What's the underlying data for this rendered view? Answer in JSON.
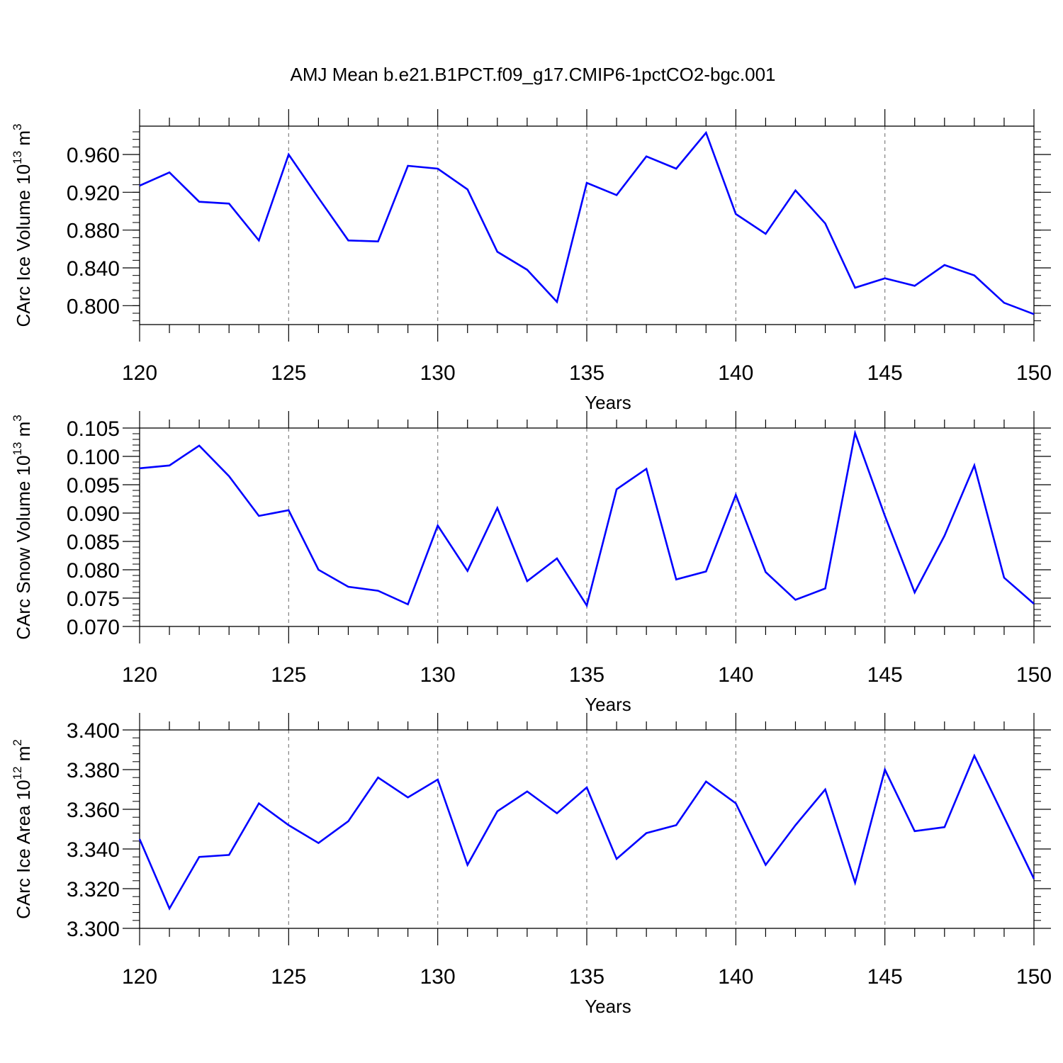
{
  "title": "AMJ Mean b.e21.B1PCT.f09_g17.CMIP6-1pctCO2-bgc.001",
  "line_color": "#0000ff",
  "grid_color": "#808080",
  "chart_data": [
    {
      "type": "line",
      "xlabel": "Years",
      "ylabel_main": "CArc Ice Volume 10",
      "ylabel_exp": "13",
      "ylabel_unit": " m",
      "ylabel_unit_exp": "3",
      "xlim": [
        120,
        150
      ],
      "ylim": [
        0.78,
        0.99
      ],
      "xticks": [
        120,
        125,
        130,
        135,
        140,
        145,
        150
      ],
      "xtick_labels": [
        "120",
        "125",
        "130",
        "135",
        "140",
        "145",
        "150"
      ],
      "yticks": [
        0.8,
        0.84,
        0.88,
        0.92,
        0.96
      ],
      "ytick_labels": [
        "0.800",
        "0.840",
        "0.880",
        "0.920",
        "0.960"
      ],
      "y_minor_step": 0.008,
      "grid": "x-dashed",
      "x": [
        120,
        121,
        122,
        123,
        124,
        125,
        126,
        127,
        128,
        129,
        130,
        131,
        132,
        133,
        134,
        135,
        136,
        137,
        138,
        139,
        140,
        141,
        142,
        143,
        144,
        145,
        146,
        147,
        148,
        149,
        150
      ],
      "values": [
        0.927,
        0.941,
        0.91,
        0.908,
        0.869,
        0.96,
        0.914,
        0.869,
        0.868,
        0.948,
        0.945,
        0.923,
        0.857,
        0.838,
        0.804,
        0.93,
        0.917,
        0.958,
        0.945,
        0.983,
        0.897,
        0.876,
        0.922,
        0.887,
        0.819,
        0.829,
        0.821,
        0.843,
        0.832,
        0.803,
        0.791
      ]
    },
    {
      "type": "line",
      "xlabel": "Years",
      "ylabel_main": "CArc Snow Volume 10",
      "ylabel_exp": "13",
      "ylabel_unit": " m",
      "ylabel_unit_exp": "3",
      "xlim": [
        120,
        150
      ],
      "ylim": [
        0.07,
        0.105
      ],
      "xticks": [
        120,
        125,
        130,
        135,
        140,
        145,
        150
      ],
      "xtick_labels": [
        "120",
        "125",
        "130",
        "135",
        "140",
        "145",
        "150"
      ],
      "yticks": [
        0.07,
        0.075,
        0.08,
        0.085,
        0.09,
        0.095,
        0.1,
        0.105
      ],
      "ytick_labels": [
        "0.070",
        "0.075",
        "0.080",
        "0.085",
        "0.090",
        "0.095",
        "0.100",
        "0.105"
      ],
      "y_minor_step": 0.001,
      "grid": "x-dashed",
      "x": [
        120,
        121,
        122,
        123,
        124,
        125,
        126,
        127,
        128,
        129,
        130,
        131,
        132,
        133,
        134,
        135,
        136,
        137,
        138,
        139,
        140,
        141,
        142,
        143,
        144,
        145,
        146,
        147,
        148,
        149,
        150
      ],
      "values": [
        0.0979,
        0.0984,
        0.1019,
        0.0965,
        0.0895,
        0.0905,
        0.08,
        0.077,
        0.0763,
        0.0739,
        0.0878,
        0.0798,
        0.0909,
        0.078,
        0.082,
        0.0737,
        0.0942,
        0.0978,
        0.0783,
        0.0797,
        0.0932,
        0.0796,
        0.0747,
        0.0767,
        0.1041,
        0.0895,
        0.076,
        0.086,
        0.0984,
        0.0786,
        0.074
      ]
    },
    {
      "type": "line",
      "xlabel": "Years",
      "ylabel_main": "CArc Ice Area 10",
      "ylabel_exp": "12",
      "ylabel_unit": " m",
      "ylabel_unit_exp": "2",
      "xlim": [
        120,
        150
      ],
      "ylim": [
        3.3,
        3.4
      ],
      "xticks": [
        120,
        125,
        130,
        135,
        140,
        145,
        150
      ],
      "xtick_labels": [
        "120",
        "125",
        "130",
        "135",
        "140",
        "145",
        "150"
      ],
      "yticks": [
        3.3,
        3.32,
        3.34,
        3.36,
        3.38,
        3.4
      ],
      "ytick_labels": [
        "3.300",
        "3.320",
        "3.340",
        "3.360",
        "3.380",
        "3.400"
      ],
      "y_minor_step": 0.004,
      "grid": "x-dashed",
      "x": [
        120,
        121,
        122,
        123,
        124,
        125,
        126,
        127,
        128,
        129,
        130,
        131,
        132,
        133,
        134,
        135,
        136,
        137,
        138,
        139,
        140,
        141,
        142,
        143,
        144,
        145,
        146,
        147,
        148,
        149,
        150
      ],
      "values": [
        3.345,
        3.31,
        3.336,
        3.337,
        3.363,
        3.352,
        3.343,
        3.354,
        3.376,
        3.366,
        3.375,
        3.332,
        3.359,
        3.369,
        3.358,
        3.371,
        3.335,
        3.348,
        3.352,
        3.374,
        3.363,
        3.332,
        3.352,
        3.37,
        3.323,
        3.38,
        3.349,
        3.351,
        3.387,
        3.356,
        3.325
      ]
    }
  ]
}
